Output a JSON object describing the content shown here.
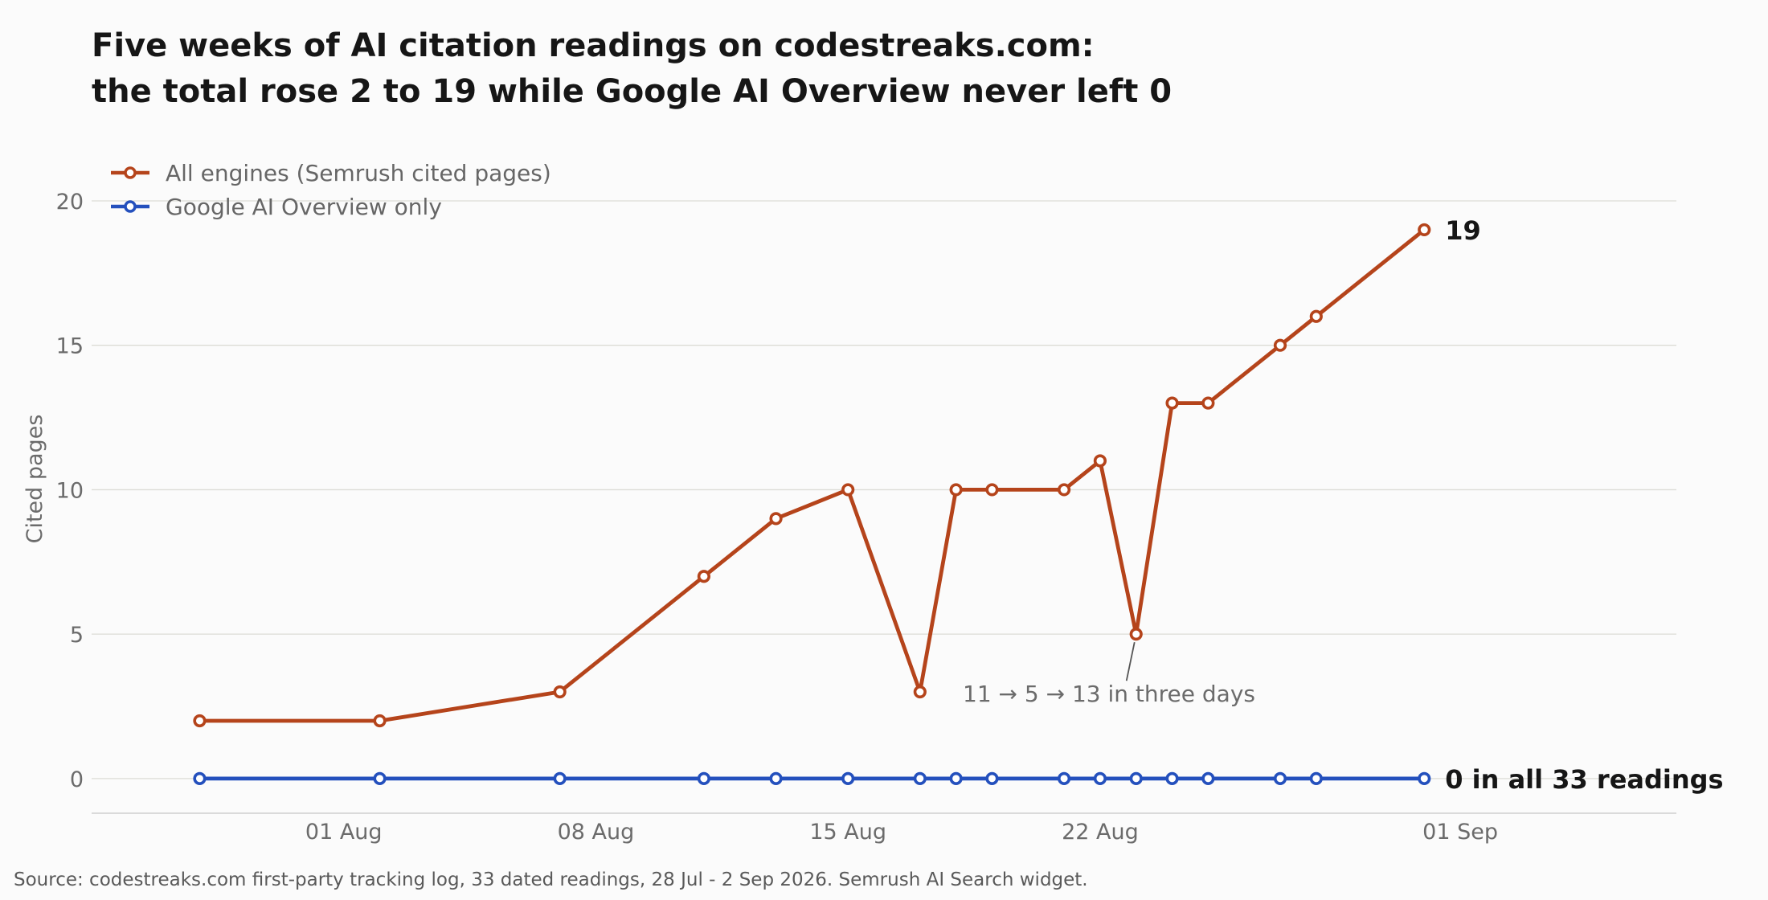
{
  "colors": {
    "all": "#b5441b",
    "google": "#2450bd",
    "grid": "#dcdcd6",
    "axis": "#cfcfcf"
  },
  "chart_data": {
    "type": "line",
    "title_line1": "Five weeks of AI citation readings on codestreaks.com:",
    "title_line2": "the total rose 2 to 19 while Google AI Overview never left 0",
    "ylabel": "Cited pages",
    "ylim": [
      -1.2,
      20.5
    ],
    "xlim": [
      "2026-07-25",
      "2026-09-07"
    ],
    "yticks": [
      0,
      5,
      10,
      15,
      20
    ],
    "xticks": [
      {
        "date": "2026-08-01",
        "label": "01 Aug"
      },
      {
        "date": "2026-08-08",
        "label": "08 Aug"
      },
      {
        "date": "2026-08-15",
        "label": "15 Aug"
      },
      {
        "date": "2026-08-22",
        "label": "22 Aug"
      },
      {
        "date": "2026-09-01",
        "label": "01 Sep"
      }
    ],
    "grid": true,
    "legend_position": "top-left",
    "x": [
      "2026-07-28",
      "2026-08-02",
      "2026-08-07",
      "2026-08-11",
      "2026-08-13",
      "2026-08-15",
      "2026-08-17",
      "2026-08-18",
      "2026-08-19",
      "2026-08-21",
      "2026-08-22",
      "2026-08-23",
      "2026-08-24",
      "2026-08-25",
      "2026-08-27",
      "2026-08-28",
      "2026-08-31"
    ],
    "series": [
      {
        "key": "all",
        "name": "All engines (Semrush cited pages)",
        "values": [
          2,
          2,
          3,
          7,
          9,
          10,
          3,
          10,
          10,
          10,
          11,
          5,
          13,
          13,
          15,
          16,
          19
        ]
      },
      {
        "key": "google",
        "name": "Google AI Overview only",
        "values": [
          0,
          0,
          0,
          0,
          0,
          0,
          0,
          0,
          0,
          0,
          0,
          0,
          0,
          0,
          0,
          0,
          0
        ]
      }
    ],
    "annotation": {
      "text": "11 → 5 → 13 in three days",
      "x": "2026-08-23",
      "y": 5
    },
    "end_labels": {
      "all": "19",
      "google": "0 in all 33 readings"
    },
    "source": "Source: codestreaks.com first-party tracking log, 33 dated readings, 28 Jul - 2 Sep 2026. Semrush AI Search widget."
  }
}
